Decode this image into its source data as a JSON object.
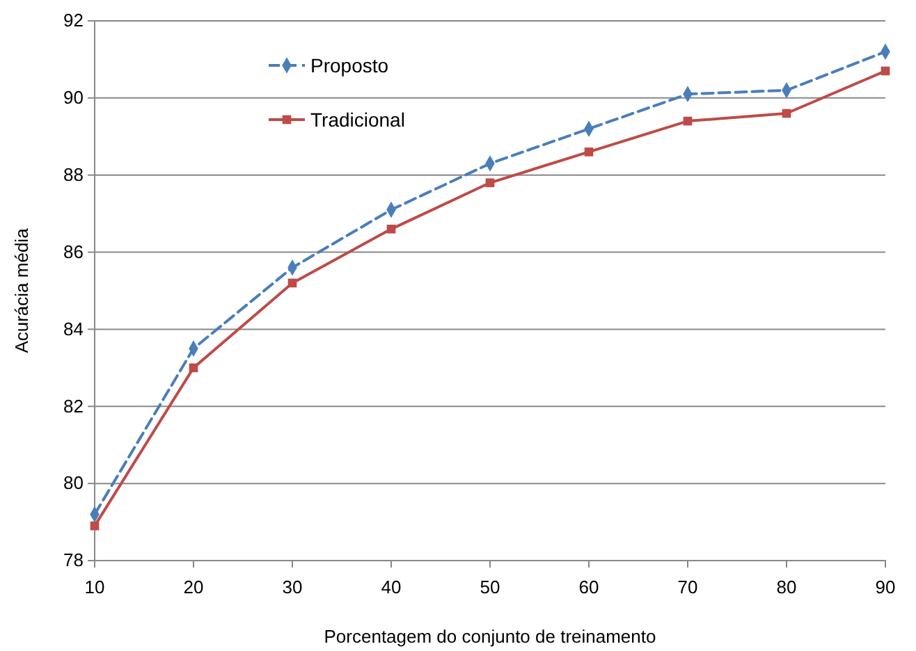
{
  "chart_data": {
    "type": "line",
    "xlabel": "Porcentagem do conjunto de treinamento",
    "ylabel": "Acurácia média",
    "x": [
      10,
      20,
      30,
      40,
      50,
      60,
      70,
      80,
      90
    ],
    "series": [
      {
        "name": "Proposto",
        "color": "#4a7ebb",
        "marker": "diamond",
        "line_style": "dashed",
        "values": [
          79.2,
          83.5,
          85.6,
          87.1,
          88.3,
          89.2,
          90.1,
          90.2,
          91.2
        ]
      },
      {
        "name": "Tradicional",
        "color": "#be4b48",
        "marker": "square",
        "line_style": "solid",
        "values": [
          78.9,
          83.0,
          85.2,
          86.6,
          87.8,
          88.6,
          89.4,
          89.6,
          90.7
        ]
      }
    ],
    "xlim": [
      10,
      90
    ],
    "xticks": [
      10,
      20,
      30,
      40,
      50,
      60,
      70,
      80,
      90
    ],
    "ylim": [
      78,
      92
    ],
    "yticks": [
      78,
      80,
      82,
      84,
      86,
      88,
      90,
      92
    ],
    "grid": "y",
    "legend": "top left"
  }
}
